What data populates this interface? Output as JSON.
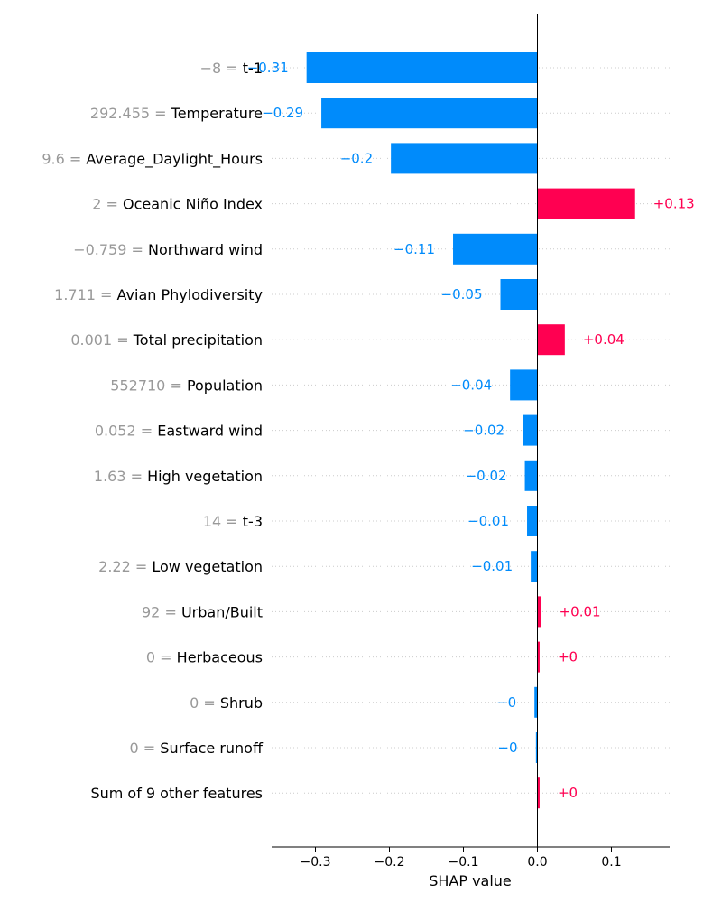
{
  "chart_data": {
    "type": "bar",
    "orientation": "horizontal",
    "xlabel": "SHAP value",
    "xlim": [
      -0.36,
      0.18
    ],
    "x_ticks": [
      -0.3,
      -0.2,
      -0.1,
      0.0,
      0.1
    ],
    "x_tick_labels": [
      "−0.3",
      "−0.2",
      "−0.1",
      "0.0",
      "0.1"
    ],
    "grid": "dotted horizontal",
    "colors": {
      "positive": "#ff0051",
      "negative": "#008bfb",
      "value_text": "#999999"
    },
    "features": [
      {
        "value": "−8",
        "name": "t-1",
        "shap": -0.312,
        "label": "−0.31"
      },
      {
        "value": "292.455",
        "name": "Temperature",
        "shap": -0.292,
        "label": "−0.29"
      },
      {
        "value": "9.6",
        "name": "Average_Daylight_Hours",
        "shap": -0.198,
        "label": "−0.2"
      },
      {
        "value": "2",
        "name": "Oceanic Niño Index",
        "shap": 0.132,
        "label": "+0.13"
      },
      {
        "value": "−0.759",
        "name": "Northward wind",
        "shap": -0.114,
        "label": "−0.11"
      },
      {
        "value": "1.711",
        "name": "Avian Phylodiversity",
        "shap": -0.05,
        "label": "−0.05"
      },
      {
        "value": "0.001",
        "name": "Total precipitation",
        "shap": 0.037,
        "label": "+0.04"
      },
      {
        "value": "552710",
        "name": "Population",
        "shap": -0.037,
        "label": "−0.04"
      },
      {
        "value": "0.052",
        "name": "Eastward wind",
        "shap": -0.02,
        "label": "−0.02"
      },
      {
        "value": "1.63",
        "name": "High vegetation",
        "shap": -0.017,
        "label": "−0.02"
      },
      {
        "value": "14",
        "name": "t-3",
        "shap": -0.014,
        "label": "−0.01"
      },
      {
        "value": "2.22",
        "name": "Low vegetation",
        "shap": -0.009,
        "label": "−0.01"
      },
      {
        "value": "92",
        "name": "Urban/Built",
        "shap": 0.005,
        "label": "+0.01"
      },
      {
        "value": "0",
        "name": "Herbaceous",
        "shap": 0.003,
        "label": "+0"
      },
      {
        "value": "0",
        "name": "Shrub",
        "shap": -0.004,
        "label": "−0"
      },
      {
        "value": "0",
        "name": "Surface runoff",
        "shap": -0.002,
        "label": "−0"
      },
      {
        "value": "",
        "name": "Sum of 9 other features",
        "shap": 0.003,
        "label": "+0"
      }
    ]
  }
}
